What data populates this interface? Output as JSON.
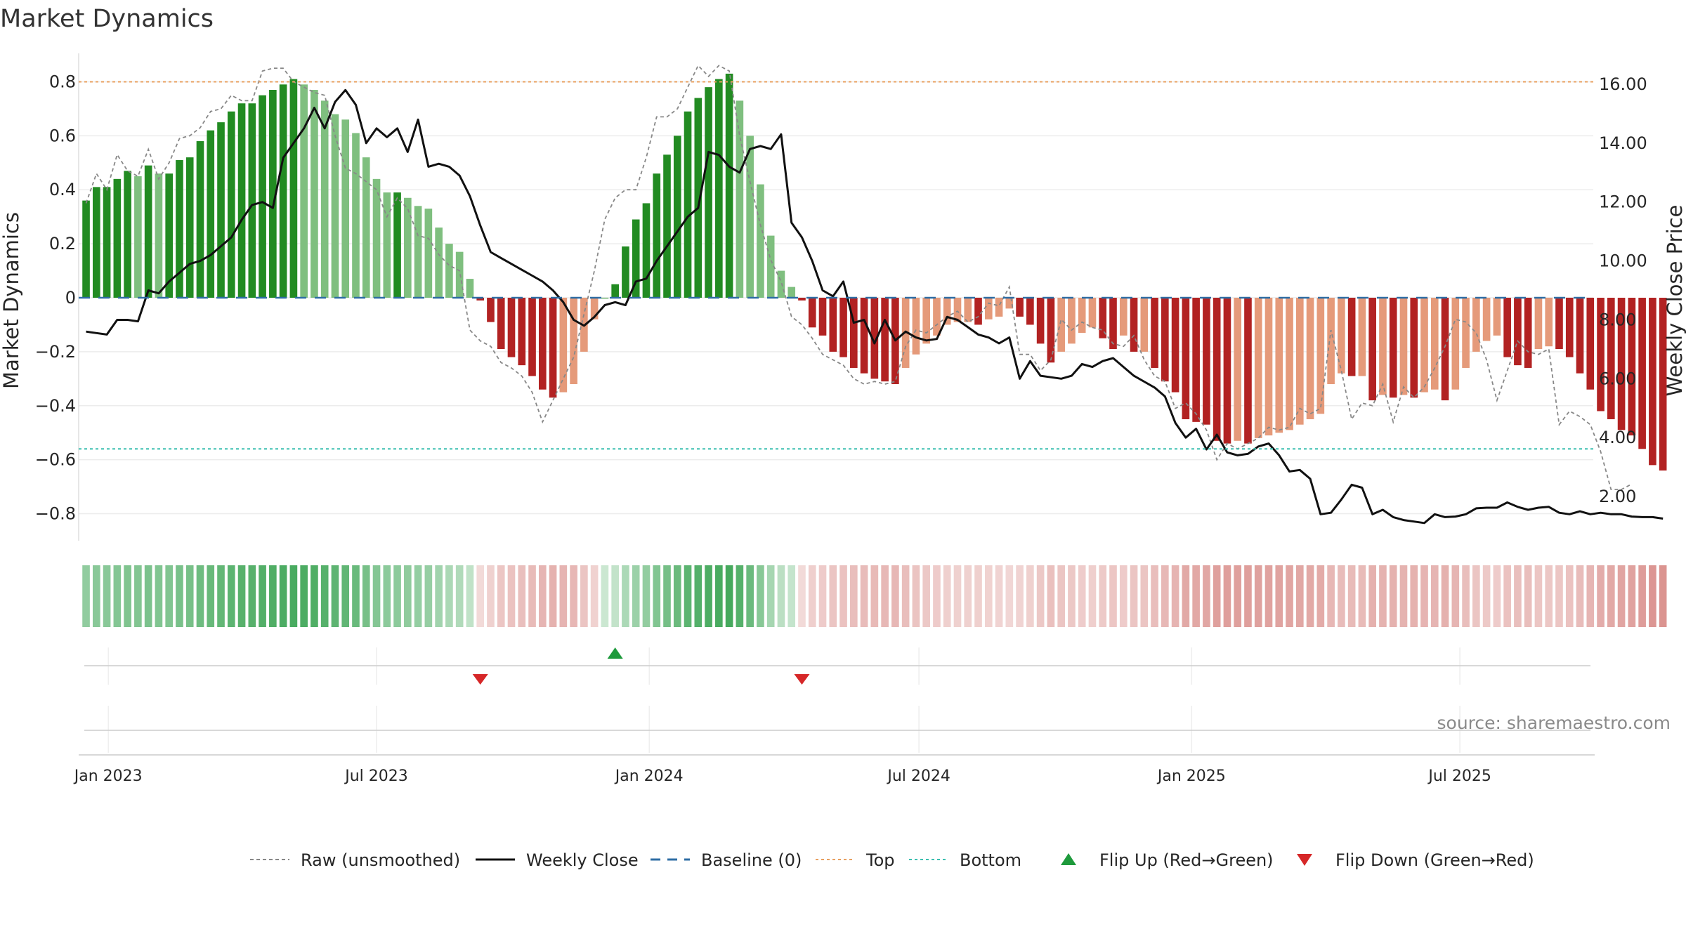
{
  "chart_data": {
    "type": "bar",
    "title": "Market Dynamics",
    "ylabel_left": "Market Dynamics",
    "ylabel_right": "Weekly Close Price",
    "ylim_left": [
      -0.9,
      0.9
    ],
    "ylim_right": [
      0.5,
      17.0
    ],
    "y_ticks_left": [
      "0.8",
      "0.6",
      "0.4",
      "0.2",
      "0",
      "−0.2",
      "−0.4",
      "−0.6",
      "−0.8"
    ],
    "y_tick_values_left": [
      0.8,
      0.6,
      0.4,
      0.2,
      0,
      -0.2,
      -0.4,
      -0.6,
      -0.8
    ],
    "y_ticks_right": [
      "16.00",
      "14.00",
      "12.00",
      "10.00",
      "8.00",
      "6.00",
      "4.00",
      "2.00"
    ],
    "y_tick_values_right": [
      16,
      14,
      12,
      10,
      8,
      6,
      4,
      2
    ],
    "x_range": [
      "2022-12-12",
      "2025-09-29"
    ],
    "x_ticks": [
      {
        "label": "Jan 2023",
        "date": "2023-01-01"
      },
      {
        "label": "Jul 2023",
        "date": "2023-07-01"
      },
      {
        "label": "Jan 2024",
        "date": "2024-01-01"
      },
      {
        "label": "Jul 2024",
        "date": "2024-07-01"
      },
      {
        "label": "Jan 2025",
        "date": "2025-01-01"
      },
      {
        "label": "Jul 2025",
        "date": "2025-07-01"
      }
    ],
    "start_date": "2022-12-17",
    "week_days": 7,
    "top_level": 0.8,
    "bottom_level": -0.56,
    "baseline": 0,
    "colors": {
      "green_strong": "#228B22",
      "green_weak": "#7FBF7F",
      "red_strong": "#B22222",
      "red_weak": "#E59A7A",
      "close": "#111111",
      "raw": "#888888",
      "baseline": "#2E6DA4",
      "top": "#E8A060",
      "bottom": "#3CBFB0",
      "flip_up": "#1E9A3C",
      "flip_down": "#D62728"
    },
    "series": [
      {
        "name": "Market Dynamics",
        "values": [
          0.36,
          0.41,
          0.41,
          0.44,
          0.47,
          0.45,
          0.49,
          0.46,
          0.46,
          0.51,
          0.52,
          0.58,
          0.62,
          0.65,
          0.69,
          0.72,
          0.72,
          0.75,
          0.77,
          0.79,
          0.81,
          0.79,
          0.77,
          0.73,
          0.68,
          0.66,
          0.61,
          0.52,
          0.44,
          0.39,
          0.39,
          0.37,
          0.34,
          0.33,
          0.26,
          0.2,
          0.17,
          0.07,
          -0.01,
          -0.09,
          -0.19,
          -0.22,
          -0.25,
          -0.29,
          -0.34,
          -0.37,
          -0.35,
          -0.32,
          -0.2,
          -0.08,
          0,
          0.05,
          0.19,
          0.29,
          0.35,
          0.46,
          0.53,
          0.6,
          0.69,
          0.74,
          0.78,
          0.81,
          0.83,
          0.73,
          0.6,
          0.42,
          0.23,
          0.1,
          0.04,
          -0.01,
          -0.11,
          -0.14,
          -0.2,
          -0.22,
          -0.26,
          -0.28,
          -0.3,
          -0.31,
          -0.32,
          -0.26,
          -0.21,
          -0.17,
          -0.14,
          -0.1,
          -0.09,
          -0.09,
          -0.1,
          -0.08,
          -0.07,
          -0.04,
          -0.07,
          -0.1,
          -0.17,
          -0.24,
          -0.2,
          -0.17,
          -0.13,
          -0.11,
          -0.15,
          -0.19,
          -0.14,
          -0.2,
          -0.2,
          -0.26,
          -0.31,
          -0.35,
          -0.45,
          -0.46,
          -0.47,
          -0.53,
          -0.54,
          -0.53,
          -0.54,
          -0.52,
          -0.51,
          -0.5,
          -0.49,
          -0.47,
          -0.45,
          -0.43,
          -0.32,
          -0.28,
          -0.29,
          -0.29,
          -0.38,
          -0.36,
          -0.37,
          -0.36,
          -0.37,
          -0.35,
          -0.34,
          -0.38,
          -0.34,
          -0.26,
          -0.2,
          -0.16,
          -0.14,
          -0.22,
          -0.25,
          -0.26,
          -0.19,
          -0.18,
          -0.19,
          -0.22,
          -0.28,
          -0.34,
          -0.42,
          -0.45,
          -0.49,
          -0.51,
          -0.56,
          -0.62,
          -0.64
        ]
      },
      {
        "name": "Raw (unsmoothed)",
        "values": [
          0.35,
          0.46,
          0.4,
          0.53,
          0.47,
          0.45,
          0.55,
          0.44,
          0.5,
          0.59,
          0.6,
          0.63,
          0.69,
          0.7,
          0.75,
          0.73,
          0.73,
          0.84,
          0.85,
          0.85,
          0.8,
          0.78,
          0.76,
          0.75,
          0.6,
          0.48,
          0.46,
          0.43,
          0.4,
          0.3,
          0.37,
          0.33,
          0.23,
          0.22,
          0.16,
          0.12,
          0.1,
          -0.12,
          -0.16,
          -0.18,
          -0.24,
          -0.26,
          -0.29,
          -0.35,
          -0.46,
          -0.38,
          -0.3,
          -0.22,
          -0.06,
          0.1,
          0.29,
          0.37,
          0.4,
          0.4,
          0.52,
          0.67,
          0.67,
          0.7,
          0.78,
          0.86,
          0.82,
          0.86,
          0.84,
          0.6,
          0.43,
          0.27,
          0.14,
          0.06,
          -0.07,
          -0.1,
          -0.15,
          -0.21,
          -0.23,
          -0.25,
          -0.3,
          -0.32,
          -0.31,
          -0.32,
          -0.31,
          -0.18,
          -0.12,
          -0.13,
          -0.1,
          -0.07,
          -0.05,
          -0.09,
          -0.07,
          -0.02,
          -0.03,
          0.04,
          -0.21,
          -0.21,
          -0.27,
          -0.23,
          -0.08,
          -0.12,
          -0.09,
          -0.11,
          -0.12,
          -0.17,
          -0.18,
          -0.14,
          -0.23,
          -0.29,
          -0.31,
          -0.41,
          -0.39,
          -0.43,
          -0.49,
          -0.6,
          -0.54,
          -0.56,
          -0.54,
          -0.52,
          -0.48,
          -0.49,
          -0.48,
          -0.41,
          -0.43,
          -0.41,
          -0.12,
          -0.27,
          -0.45,
          -0.39,
          -0.4,
          -0.32,
          -0.46,
          -0.33,
          -0.37,
          -0.33,
          -0.26,
          -0.18,
          -0.08,
          -0.09,
          -0.13,
          -0.23,
          -0.38,
          -0.27,
          -0.16,
          -0.2,
          -0.21,
          -0.19,
          -0.47,
          -0.42,
          -0.44,
          -0.47,
          -0.57,
          -0.71,
          -0.71,
          -0.69
        ]
      },
      {
        "name": "Weekly Close",
        "values": [
          7.6,
          7.55,
          7.5,
          8.0,
          8.0,
          7.95,
          9.0,
          8.9,
          9.3,
          9.6,
          9.9,
          10.0,
          10.2,
          10.5,
          10.8,
          11.4,
          11.9,
          12.0,
          11.8,
          13.5,
          14.0,
          14.5,
          15.2,
          14.5,
          15.4,
          15.8,
          15.3,
          14.0,
          14.5,
          14.2,
          14.5,
          13.7,
          14.8,
          13.2,
          13.3,
          13.2,
          12.9,
          12.2,
          11.2,
          10.3,
          10.1,
          9.9,
          9.7,
          9.5,
          9.3,
          9.0,
          8.6,
          8.0,
          7.8,
          8.1,
          8.5,
          8.6,
          8.5,
          9.3,
          9.4,
          10.0,
          10.5,
          11.0,
          11.5,
          11.8,
          13.7,
          13.6,
          13.2,
          13.0,
          13.8,
          13.9,
          13.8,
          14.3,
          11.3,
          10.8,
          10.0,
          9.0,
          8.8,
          9.3,
          7.9,
          8.0,
          7.2,
          8.0,
          7.3,
          7.6,
          7.4,
          7.3,
          7.35,
          8.1,
          8.0,
          7.75,
          7.5,
          7.4,
          7.2,
          7.4,
          6.0,
          6.6,
          6.1,
          6.05,
          6.0,
          6.1,
          6.5,
          6.4,
          6.6,
          6.7,
          6.4,
          6.1,
          5.9,
          5.7,
          5.4,
          4.5,
          4.0,
          4.3,
          3.6,
          4.1,
          3.5,
          3.4,
          3.45,
          3.7,
          3.8,
          3.4,
          2.85,
          2.9,
          2.6,
          1.4,
          1.45,
          1.9,
          2.4,
          2.3,
          1.4,
          1.55,
          1.3,
          1.2,
          1.15,
          1.1,
          1.4,
          1.3,
          1.32,
          1.4,
          1.6,
          1.62,
          1.62,
          1.8,
          1.65,
          1.55,
          1.62,
          1.65,
          1.45,
          1.4,
          1.5,
          1.4,
          1.45,
          1.4,
          1.4,
          1.32,
          1.3,
          1.3,
          1.25
        ]
      },
      {
        "name": "Baseline (0)"
      },
      {
        "name": "Top"
      },
      {
        "name": "Bottom"
      }
    ],
    "flips_up_weeks": [
      51
    ],
    "flips_down_weeks": [
      38,
      69
    ],
    "legend": {
      "placement": "bottom",
      "entries": [
        "Raw (unsmoothed)",
        "Weekly Close",
        "Baseline (0)",
        "Top",
        "Bottom",
        "Flip Up (Red→Green)",
        "Flip Down (Green→Red)"
      ]
    },
    "source_note": "source: sharemaestro.com"
  }
}
